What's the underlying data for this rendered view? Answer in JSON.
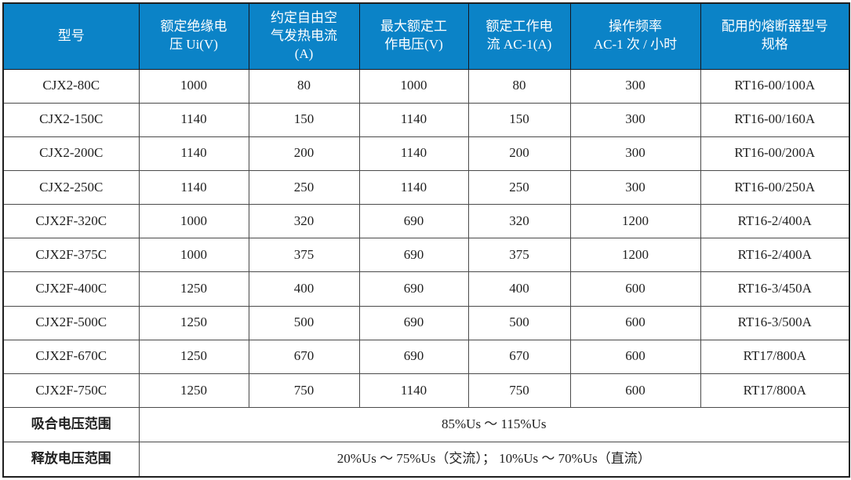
{
  "colors": {
    "header_bg": "#0b83c7",
    "header_text": "#ffffff",
    "body_text": "#1f1f1f",
    "grid_line": "#4a4a4a",
    "outer_border": "#1f1f1f"
  },
  "table": {
    "headers": [
      "型号",
      "额定绝缘电\n压 Ui(V)",
      "约定自由空\n气发热电流\n(A)",
      "最大额定工\n作电压(V)",
      "额定工作电\n流 AC-1(A)",
      "操作频率\nAC-1 次 / 小时",
      "配用的熔断器型号\n规格"
    ],
    "rows": [
      [
        "CJX2-80C",
        "1000",
        "80",
        "1000",
        "80",
        "300",
        "RT16-00/100A"
      ],
      [
        "CJX2-150C",
        "1140",
        "150",
        "1140",
        "150",
        "300",
        "RT16-00/160A"
      ],
      [
        "CJX2-200C",
        "1140",
        "200",
        "1140",
        "200",
        "300",
        "RT16-00/200A"
      ],
      [
        "CJX2-250C",
        "1140",
        "250",
        "1140",
        "250",
        "300",
        "RT16-00/250A"
      ],
      [
        "CJX2F-320C",
        "1000",
        "320",
        "690",
        "320",
        "1200",
        "RT16-2/400A"
      ],
      [
        "CJX2F-375C",
        "1000",
        "375",
        "690",
        "375",
        "1200",
        "RT16-2/400A"
      ],
      [
        "CJX2F-400C",
        "1250",
        "400",
        "690",
        "400",
        "600",
        "RT16-3/450A"
      ],
      [
        "CJX2F-500C",
        "1250",
        "500",
        "690",
        "500",
        "600",
        "RT16-3/500A"
      ],
      [
        "CJX2F-670C",
        "1250",
        "670",
        "690",
        "670",
        "600",
        "RT17/800A"
      ],
      [
        "CJX2F-750C",
        "1250",
        "750",
        "1140",
        "750",
        "600",
        "RT17/800A"
      ]
    ],
    "footer": [
      {
        "label": "吸合电压范围",
        "value": "85%Us ～ 115%Us"
      },
      {
        "label": "释放电压范围",
        "value": "20%Us ～ 75%Us（交流）； 10%Us ～ 70%Us（直流）"
      }
    ]
  }
}
